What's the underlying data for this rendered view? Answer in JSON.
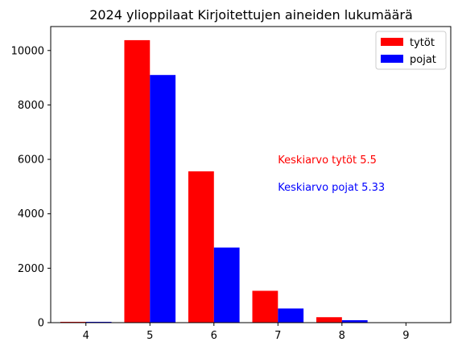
{
  "chart_data": {
    "type": "bar",
    "title": "2024 ylioppilaat Kirjoitettujen aineiden lukumäärä",
    "xlabel": "",
    "ylabel": "",
    "categories": [
      4,
      5,
      6,
      7,
      8,
      9
    ],
    "xlim": [
      3.45,
      9.7
    ],
    "ylim": [
      0,
      10880
    ],
    "yticks": [
      0,
      2000,
      4000,
      6000,
      8000,
      10000
    ],
    "grid": false,
    "legend_position": "top-right",
    "series": [
      {
        "name": "tytöt",
        "color": "#ff0000",
        "values": [
          30,
          10380,
          5560,
          1170,
          200,
          0
        ]
      },
      {
        "name": "pojat",
        "color": "#0000ff",
        "values": [
          30,
          9100,
          2760,
          520,
          90,
          0
        ]
      }
    ],
    "annotations": [
      {
        "text": "Keskiarvo tytöt 5.5",
        "x": 7,
        "y": 6000,
        "color": "#ff0000"
      },
      {
        "text": "Keskiarvo pojat 5.33",
        "x": 7,
        "y": 5000,
        "color": "#0000ff"
      }
    ]
  }
}
